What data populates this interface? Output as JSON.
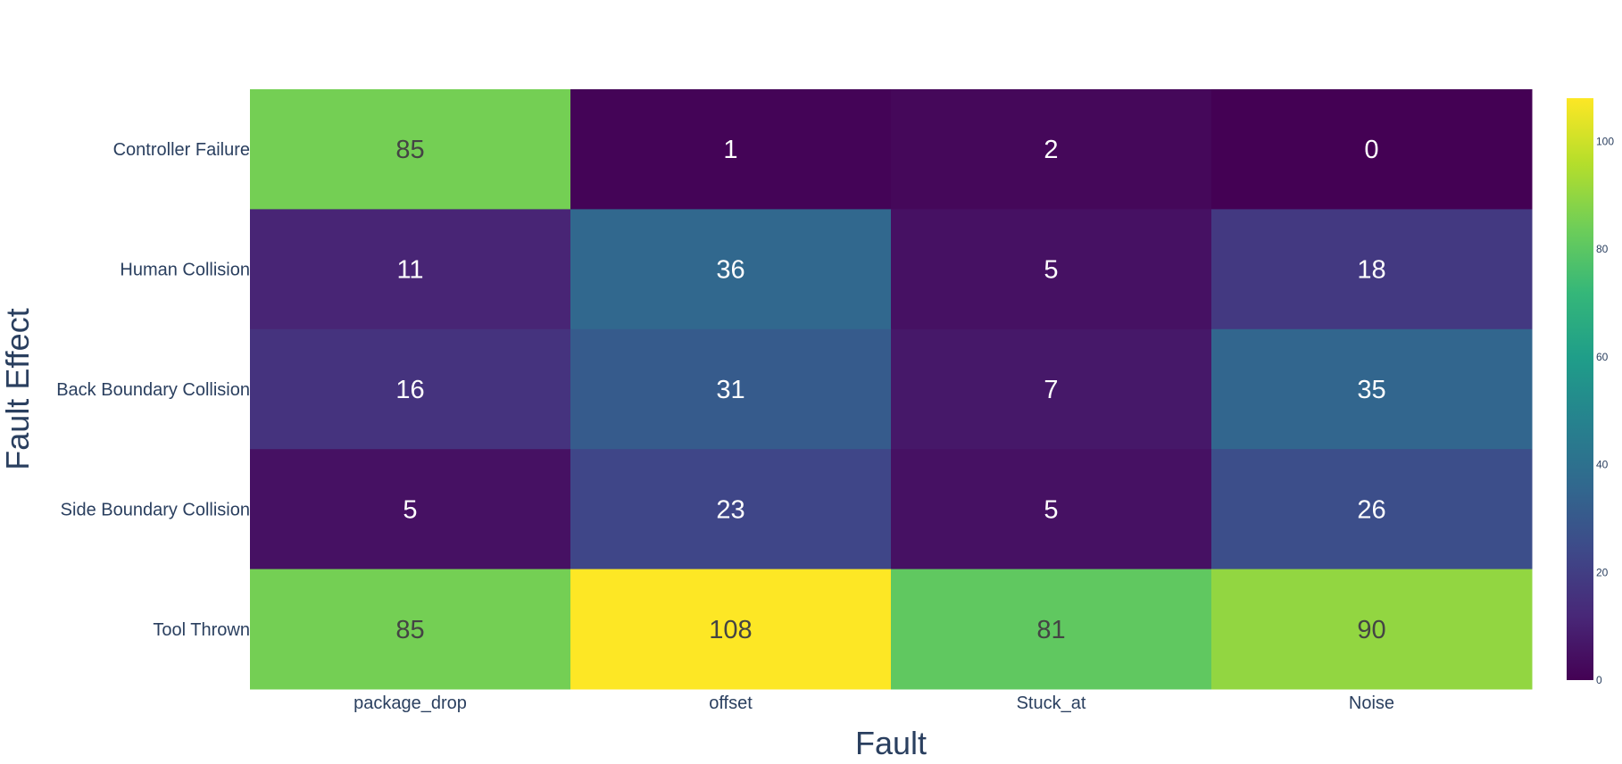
{
  "chart_data": {
    "type": "heatmap",
    "title": "",
    "xlabel": "Fault",
    "ylabel": "Fault Effect",
    "x_categories": [
      "package_drop",
      "offset",
      "Stuck_at",
      "Noise"
    ],
    "y_categories": [
      "Controller Failure",
      "Human Collision",
      "Back Boundary Collision",
      "Side Boundary Collision",
      "Tool Thrown"
    ],
    "z": [
      [
        85,
        1,
        2,
        0
      ],
      [
        11,
        36,
        5,
        18
      ],
      [
        16,
        31,
        7,
        35
      ],
      [
        5,
        23,
        5,
        26
      ],
      [
        85,
        108,
        81,
        90
      ]
    ],
    "zlim": [
      0,
      108
    ],
    "colorscale": "viridis",
    "colorbar_ticks": [
      "0",
      "20",
      "40",
      "60",
      "80",
      "100"
    ],
    "colors": {
      "dark_text": "#444444",
      "light_text": "#ffffff",
      "axis_text": "#2a3f5f"
    }
  }
}
